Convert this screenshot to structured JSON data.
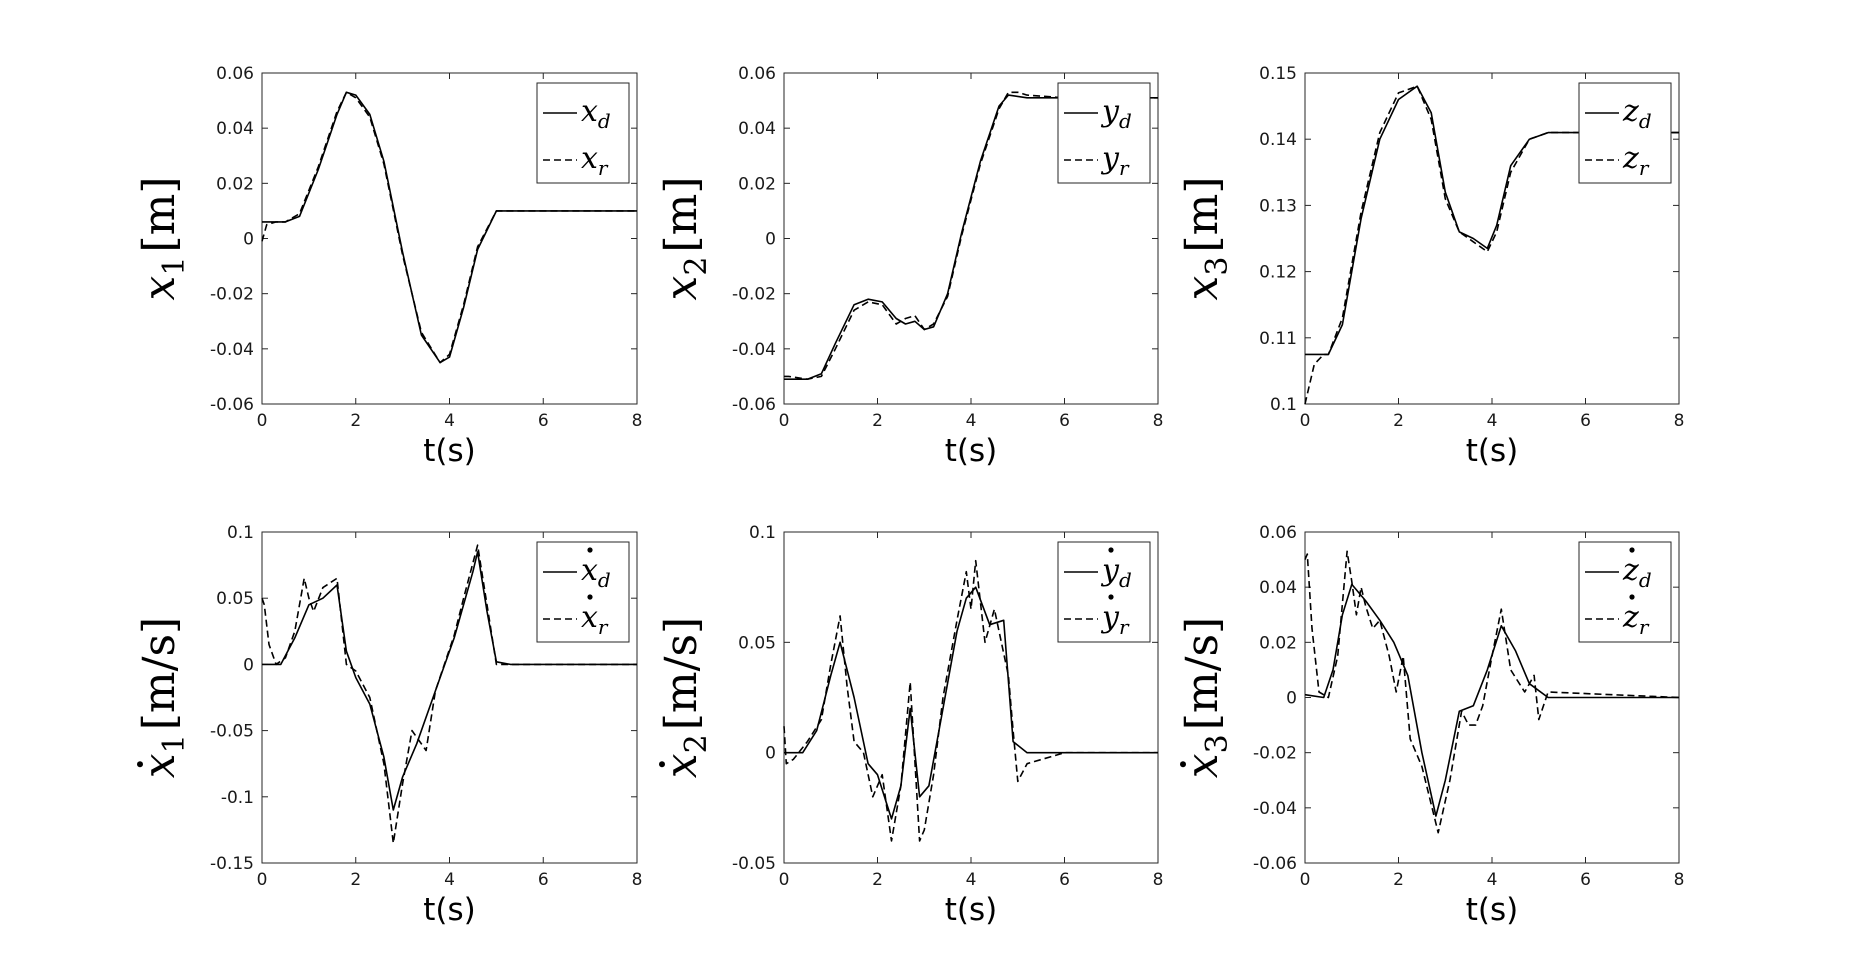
{
  "chart_data": [
    {
      "type": "line",
      "ylabel": {
        "var": "x",
        "sub": "1",
        "dot": false,
        "unit": "[m]"
      },
      "xlabel": "t(s)",
      "xlim": [
        0,
        8
      ],
      "ylim": [
        -0.06,
        0.06
      ],
      "xticks": [
        "0",
        "2",
        "4",
        "6",
        "8"
      ],
      "yticks": [
        "-0.06",
        "-0.04",
        "-0.02",
        "0",
        "0.02",
        "0.04",
        "0.06"
      ],
      "legend": {
        "position": "top-right"
      },
      "series": [
        {
          "name": "x",
          "sub": "d",
          "dot": false,
          "style": "solid",
          "x": [
            0,
            0.5,
            0.8,
            1.2,
            1.6,
            1.8,
            2.0,
            2.3,
            2.6,
            3.0,
            3.4,
            3.8,
            4.0,
            4.3,
            4.6,
            5.0,
            5.2,
            6.0,
            8.0
          ],
          "y": [
            0.006,
            0.006,
            0.008,
            0.025,
            0.045,
            0.053,
            0.052,
            0.045,
            0.028,
            -0.005,
            -0.035,
            -0.045,
            -0.043,
            -0.025,
            -0.004,
            0.01,
            0.01,
            0.01,
            0.01
          ]
        },
        {
          "name": "x",
          "sub": "r",
          "dot": false,
          "style": "dashed",
          "x": [
            0,
            0.1,
            0.3,
            0.5,
            0.8,
            1.2,
            1.6,
            1.8,
            2.0,
            2.3,
            2.6,
            3.0,
            3.4,
            3.8,
            4.0,
            4.3,
            4.6,
            5.0,
            5.2,
            6.0,
            8.0
          ],
          "y": [
            -0.001,
            0.005,
            0.006,
            0.006,
            0.009,
            0.026,
            0.046,
            0.053,
            0.051,
            0.044,
            0.027,
            -0.006,
            -0.034,
            -0.045,
            -0.042,
            -0.024,
            -0.003,
            0.01,
            0.01,
            0.01,
            0.01
          ]
        }
      ]
    },
    {
      "type": "line",
      "ylabel": {
        "var": "x",
        "sub": "2",
        "dot": false,
        "unit": "[m]"
      },
      "xlabel": "t(s)",
      "xlim": [
        0,
        8
      ],
      "ylim": [
        -0.06,
        0.06
      ],
      "xticks": [
        "0",
        "2",
        "4",
        "6",
        "8"
      ],
      "yticks": [
        "-0.06",
        "-0.04",
        "-0.02",
        "0",
        "0.02",
        "0.04",
        "0.06"
      ],
      "legend": {
        "position": "top-right"
      },
      "series": [
        {
          "name": "y",
          "sub": "d",
          "dot": false,
          "style": "solid",
          "x": [
            0,
            0.5,
            0.8,
            1.1,
            1.5,
            1.8,
            2.1,
            2.4,
            2.6,
            2.8,
            3.0,
            3.2,
            3.5,
            3.8,
            4.2,
            4.6,
            4.8,
            5.2,
            6.0,
            8.0
          ],
          "y": [
            -0.051,
            -0.051,
            -0.049,
            -0.038,
            -0.024,
            -0.022,
            -0.023,
            -0.029,
            -0.031,
            -0.03,
            -0.033,
            -0.032,
            -0.02,
            0.002,
            0.028,
            0.048,
            0.052,
            0.051,
            0.051,
            0.051
          ]
        },
        {
          "name": "y",
          "sub": "r",
          "dot": false,
          "style": "dashed",
          "x": [
            0,
            0.1,
            0.5,
            0.8,
            1.1,
            1.5,
            1.8,
            2.1,
            2.4,
            2.6,
            2.8,
            3.0,
            3.2,
            3.5,
            3.8,
            4.2,
            4.6,
            4.8,
            5.0,
            5.2,
            6.0,
            8.0
          ],
          "y": [
            -0.05,
            -0.05,
            -0.051,
            -0.05,
            -0.04,
            -0.026,
            -0.023,
            -0.024,
            -0.031,
            -0.029,
            -0.028,
            -0.033,
            -0.031,
            -0.021,
            0.001,
            0.027,
            0.047,
            0.053,
            0.053,
            0.052,
            0.051,
            0.051
          ]
        }
      ]
    },
    {
      "type": "line",
      "ylabel": {
        "var": "x",
        "sub": "3",
        "dot": false,
        "unit": "[m]"
      },
      "xlabel": "t(s)",
      "xlim": [
        0,
        8
      ],
      "ylim": [
        0.1,
        0.15
      ],
      "xticks": [
        "0",
        "2",
        "4",
        "6",
        "8"
      ],
      "yticks": [
        "0.1",
        "0.11",
        "0.12",
        "0.13",
        "0.14",
        "0.15"
      ],
      "legend": {
        "position": "top-right"
      },
      "series": [
        {
          "name": "z",
          "sub": "d",
          "dot": false,
          "style": "solid",
          "x": [
            0,
            0.5,
            0.8,
            1.2,
            1.6,
            2.0,
            2.4,
            2.7,
            3.0,
            3.3,
            3.6,
            3.9,
            4.1,
            4.4,
            4.8,
            5.2,
            6.0,
            8.0
          ],
          "y": [
            0.1075,
            0.1075,
            0.112,
            0.128,
            0.14,
            0.146,
            0.148,
            0.144,
            0.132,
            0.126,
            0.125,
            0.1235,
            0.127,
            0.136,
            0.14,
            0.141,
            0.141,
            0.141
          ]
        },
        {
          "name": "z",
          "sub": "r",
          "dot": false,
          "style": "dashed",
          "x": [
            0,
            0.2,
            0.4,
            0.5,
            0.8,
            1.2,
            1.6,
            2.0,
            2.4,
            2.7,
            3.0,
            3.3,
            3.6,
            3.9,
            4.1,
            4.4,
            4.8,
            5.2,
            6.0,
            8.0
          ],
          "y": [
            0.1,
            0.106,
            0.1075,
            0.1075,
            0.113,
            0.129,
            0.141,
            0.147,
            0.148,
            0.143,
            0.131,
            0.126,
            0.1245,
            0.123,
            0.126,
            0.135,
            0.14,
            0.141,
            0.141,
            0.141
          ]
        }
      ]
    },
    {
      "type": "line",
      "ylabel": {
        "var": "x",
        "sub": "1",
        "dot": true,
        "unit": "[m/s]"
      },
      "xlabel": "t(s)",
      "xlim": [
        0,
        8
      ],
      "ylim": [
        -0.15,
        0.1
      ],
      "xticks": [
        "0",
        "2",
        "4",
        "6",
        "8"
      ],
      "yticks": [
        "-0.15",
        "-0.1",
        "-0.05",
        "0",
        "0.05",
        "0.1"
      ],
      "legend": {
        "position": "top-right"
      },
      "series": [
        {
          "name": "x",
          "sub": "d",
          "dot": true,
          "style": "solid",
          "x": [
            0,
            0.4,
            0.7,
            1.0,
            1.3,
            1.6,
            1.8,
            2.0,
            2.3,
            2.6,
            2.8,
            3.0,
            3.3,
            3.7,
            4.1,
            4.5,
            4.6,
            4.8,
            5.0,
            5.3,
            8.0
          ],
          "y": [
            0,
            0,
            0.02,
            0.045,
            0.05,
            0.06,
            0.01,
            -0.01,
            -0.03,
            -0.07,
            -0.11,
            -0.085,
            -0.06,
            -0.02,
            0.02,
            0.07,
            0.085,
            0.04,
            0.002,
            0,
            0
          ]
        },
        {
          "name": "x",
          "sub": "r",
          "dot": true,
          "style": "dashed",
          "x": [
            0,
            0.05,
            0.15,
            0.3,
            0.5,
            0.7,
            0.9,
            1.0,
            1.1,
            1.3,
            1.6,
            1.8,
            2.0,
            2.3,
            2.6,
            2.8,
            3.0,
            3.2,
            3.5,
            3.7,
            4.1,
            4.3,
            4.6,
            4.8,
            5.0,
            5.3,
            8.0
          ],
          "y": [
            0.05,
            0.045,
            0.015,
            0,
            0.005,
            0.025,
            0.065,
            0.05,
            0.04,
            0.058,
            0.065,
            0.0,
            -0.005,
            -0.025,
            -0.075,
            -0.135,
            -0.09,
            -0.05,
            -0.065,
            -0.02,
            0.022,
            0.05,
            0.09,
            0.045,
            0.0,
            0,
            0
          ]
        }
      ]
    },
    {
      "type": "line",
      "ylabel": {
        "var": "x",
        "sub": "2",
        "dot": true,
        "unit": "[m/s]"
      },
      "xlabel": "t(s)",
      "xlim": [
        0,
        8
      ],
      "ylim": [
        -0.05,
        0.1
      ],
      "xticks": [
        "0",
        "2",
        "4",
        "6",
        "8"
      ],
      "yticks": [
        "-0.05",
        "0",
        "0.05",
        "0.1"
      ],
      "legend": {
        "position": "top-right"
      },
      "series": [
        {
          "name": "y",
          "sub": "d",
          "dot": true,
          "style": "solid",
          "x": [
            0,
            0.4,
            0.7,
            1.0,
            1.2,
            1.5,
            1.8,
            2.0,
            2.3,
            2.5,
            2.7,
            2.9,
            3.1,
            3.4,
            3.7,
            3.9,
            4.1,
            4.4,
            4.7,
            4.9,
            5.2,
            6.0,
            8.0
          ],
          "y": [
            0,
            0,
            0.01,
            0.035,
            0.05,
            0.025,
            -0.005,
            -0.01,
            -0.03,
            -0.015,
            0.02,
            -0.02,
            -0.015,
            0.02,
            0.055,
            0.07,
            0.075,
            0.058,
            0.06,
            0.005,
            0.0,
            0,
            0
          ]
        },
        {
          "name": "y",
          "sub": "r",
          "dot": true,
          "style": "dashed",
          "x": [
            0,
            0.05,
            0.2,
            0.5,
            0.8,
            1.0,
            1.2,
            1.35,
            1.5,
            1.7,
            1.9,
            2.1,
            2.3,
            2.5,
            2.7,
            2.9,
            3.0,
            3.2,
            3.4,
            3.7,
            3.9,
            4.0,
            4.1,
            4.3,
            4.5,
            4.7,
            4.8,
            4.9,
            5.0,
            5.2,
            6.0,
            8.0
          ],
          "y": [
            0.012,
            -0.005,
            -0.003,
            0.005,
            0.015,
            0.04,
            0.062,
            0.03,
            0.005,
            0.0,
            -0.02,
            -0.01,
            -0.04,
            -0.015,
            0.032,
            -0.04,
            -0.035,
            -0.01,
            0.025,
            0.06,
            0.082,
            0.065,
            0.087,
            0.05,
            0.065,
            0.045,
            0.035,
            0.01,
            -0.013,
            -0.005,
            0,
            0
          ]
        }
      ]
    },
    {
      "type": "line",
      "ylabel": {
        "var": "x",
        "sub": "3",
        "dot": true,
        "unit": "[m/s]"
      },
      "xlabel": "t(s)",
      "xlim": [
        0,
        8
      ],
      "ylim": [
        -0.06,
        0.06
      ],
      "xticks": [
        "0",
        "2",
        "4",
        "6",
        "8"
      ],
      "yticks": [
        "-0.06",
        "-0.04",
        "-0.02",
        "0",
        "0.02",
        "0.04",
        "0.06"
      ],
      "legend": {
        "position": "top-right"
      },
      "series": [
        {
          "name": "z",
          "sub": "d",
          "dot": true,
          "style": "solid",
          "x": [
            0,
            0.4,
            0.6,
            0.8,
            1.0,
            1.3,
            1.6,
            1.9,
            2.2,
            2.5,
            2.8,
            3.0,
            3.3,
            3.6,
            3.9,
            4.2,
            4.5,
            4.8,
            5.2,
            8.0
          ],
          "y": [
            0.001,
            0.0,
            0.01,
            0.03,
            0.041,
            0.035,
            0.028,
            0.02,
            0.008,
            -0.02,
            -0.043,
            -0.03,
            -0.005,
            -0.003,
            0.01,
            0.026,
            0.017,
            0.005,
            0.0,
            0.0
          ]
        },
        {
          "name": "z",
          "sub": "r",
          "dot": true,
          "style": "dashed",
          "x": [
            0,
            0.05,
            0.15,
            0.3,
            0.5,
            0.7,
            0.9,
            1.0,
            1.1,
            1.2,
            1.3,
            1.45,
            1.6,
            1.8,
            1.95,
            2.1,
            2.25,
            2.5,
            2.85,
            3.1,
            3.35,
            3.5,
            3.65,
            3.8,
            4.0,
            4.2,
            4.4,
            4.7,
            4.9,
            5.0,
            5.2,
            8.0
          ],
          "y": [
            0.05,
            0.052,
            0.025,
            0.002,
            0.0,
            0.015,
            0.053,
            0.042,
            0.03,
            0.04,
            0.033,
            0.025,
            0.028,
            0.015,
            0.002,
            0.015,
            -0.015,
            -0.025,
            -0.049,
            -0.03,
            -0.005,
            -0.01,
            -0.01,
            -0.003,
            0.015,
            0.032,
            0.01,
            0.002,
            0.008,
            -0.008,
            0.002,
            0.0
          ]
        }
      ]
    }
  ]
}
